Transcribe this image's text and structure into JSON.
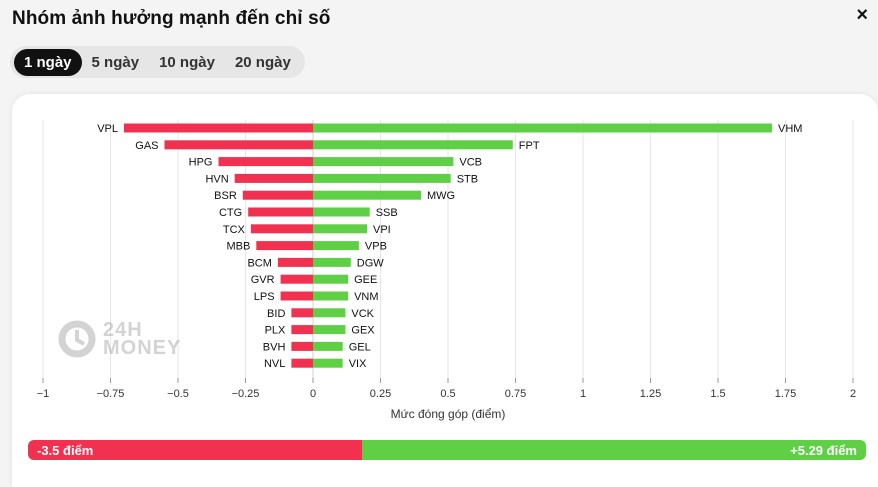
{
  "header": {
    "title": "Nhóm ảnh hưởng mạnh đến chỉ số",
    "close_label": "×"
  },
  "tabs": [
    {
      "label": "1 ngày",
      "active": true
    },
    {
      "label": "5 ngày",
      "active": false
    },
    {
      "label": "10 ngày",
      "active": false
    },
    {
      "label": "20 ngày",
      "active": false
    }
  ],
  "watermark": {
    "line1": "24H",
    "line2": "MONEY"
  },
  "colors": {
    "negative": "#f23050",
    "positive": "#5fcf45",
    "grid": "#e6e6e6"
  },
  "chart_data": {
    "type": "bar",
    "orientation": "horizontal",
    "xlabel": "Mức đóng góp (điểm)",
    "xlim": [
      -1,
      2
    ],
    "xticks": [
      -1,
      -0.75,
      -0.5,
      -0.25,
      0,
      0.25,
      0.5,
      0.75,
      1,
      1.25,
      1.5,
      1.75,
      2
    ],
    "xtick_labels": [
      "−1",
      "−0.75",
      "−0.5",
      "−0.25",
      "0",
      "0.25",
      "0.5",
      "0.75",
      "1",
      "1.25",
      "1.5",
      "1.75",
      "2"
    ],
    "grid": true,
    "series": [
      {
        "sign": "negative",
        "categories": [
          "VPL",
          "GAS",
          "HPG",
          "HVN",
          "BSR",
          "CTG",
          "TCX",
          "MBB",
          "BCM",
          "GVR",
          "LPS",
          "BID",
          "PLX",
          "BVH",
          "NVL"
        ],
        "values": [
          -0.7,
          -0.55,
          -0.35,
          -0.29,
          -0.26,
          -0.24,
          -0.23,
          -0.21,
          -0.13,
          -0.12,
          -0.12,
          -0.08,
          -0.08,
          -0.08,
          -0.08
        ]
      },
      {
        "sign": "positive",
        "categories": [
          "VHM",
          "FPT",
          "VCB",
          "STB",
          "MWG",
          "SSB",
          "VPI",
          "VPB",
          "DGW",
          "GEE",
          "VNM",
          "VCK",
          "GEX",
          "GEL",
          "VIX"
        ],
        "values": [
          1.7,
          0.74,
          0.52,
          0.51,
          0.4,
          0.21,
          0.2,
          0.17,
          0.14,
          0.13,
          0.13,
          0.12,
          0.12,
          0.11,
          0.11
        ]
      }
    ]
  },
  "summary": {
    "negative_label": "-3.5 điểm",
    "positive_label": "+5.29 điểm",
    "negative_value": -3.5,
    "positive_value": 5.29
  }
}
